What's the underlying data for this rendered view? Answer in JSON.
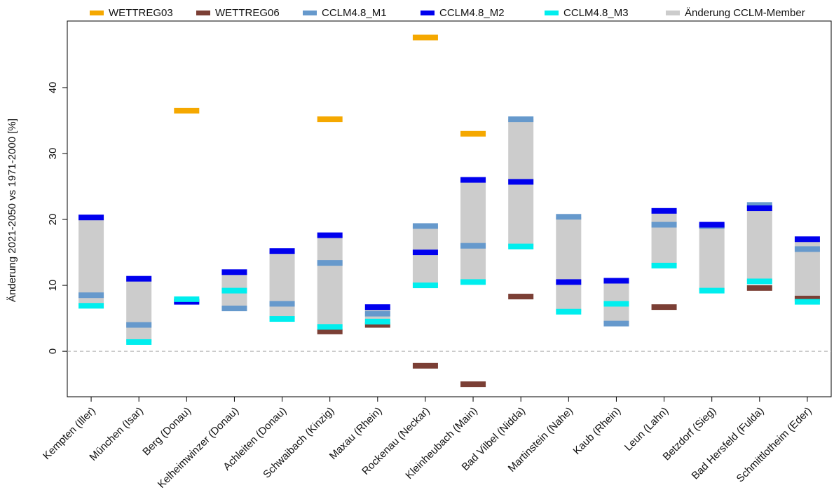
{
  "chart_data": {
    "type": "range-bar",
    "y_label": "Änderung 2021-2050 vs 1971-2000 [%]",
    "categories": [
      "Kempten (Iller)",
      "München (Isar)",
      "Berg (Donau)",
      "Kelheimwinzer (Donau)",
      "Achleiten (Donau)",
      "Schwaibach (Kinzig)",
      "Maxau (Rhein)",
      "Rockenau (Neckar)",
      "Kleinheubach (Main)",
      "Bad Vilbel (Nidda)",
      "Martinstein (Nahe)",
      "Kaub (Rhein)",
      "Leun (Lahn)",
      "Betzdorf (Sieg)",
      "Bad Hersfeld (Fulda)",
      "Schmittlotheim (Eder)"
    ],
    "range_name": "Änderung CCLM-Member",
    "range_color": "#cccccc",
    "series": [
      {
        "name": "WETTREG03",
        "color": "#f5a800",
        "values": [
          null,
          null,
          36.5,
          null,
          null,
          35.2,
          null,
          47.6,
          33.0,
          null,
          null,
          null,
          null,
          null,
          null,
          null
        ]
      },
      {
        "name": "WETTREG06",
        "color": "#7b3f35",
        "values": [
          null,
          null,
          null,
          null,
          null,
          3.0,
          4.0,
          -2.2,
          -5.0,
          8.3,
          null,
          null,
          6.7,
          null,
          9.6,
          8.0
        ]
      },
      {
        "name": "CCLM4.8_M1",
        "color": "#6699cc",
        "values": [
          8.5,
          4.0,
          7.6,
          6.5,
          7.2,
          13.4,
          5.7,
          19.0,
          16.0,
          35.2,
          20.4,
          4.2,
          19.2,
          19.0,
          22.2,
          15.5
        ]
      },
      {
        "name": "CCLM4.8_M2",
        "color": "#0000ee",
        "values": [
          20.3,
          11.0,
          7.5,
          12.0,
          15.2,
          17.6,
          6.7,
          15.0,
          26.0,
          25.7,
          10.5,
          10.7,
          21.3,
          19.2,
          21.7,
          17.0
        ]
      },
      {
        "name": "CCLM4.8_M3",
        "color": "#00eeee",
        "values": [
          6.9,
          1.4,
          7.9,
          9.2,
          4.9,
          3.7,
          4.5,
          10.0,
          10.5,
          15.9,
          6.0,
          7.2,
          13.0,
          9.2,
          10.6,
          7.5
        ]
      }
    ],
    "range_members": [
      2,
      3,
      4
    ],
    "ylim": [
      -6.9,
      50.1
    ],
    "yticks": [
      0,
      10,
      20,
      30,
      40
    ],
    "hline": 0
  }
}
